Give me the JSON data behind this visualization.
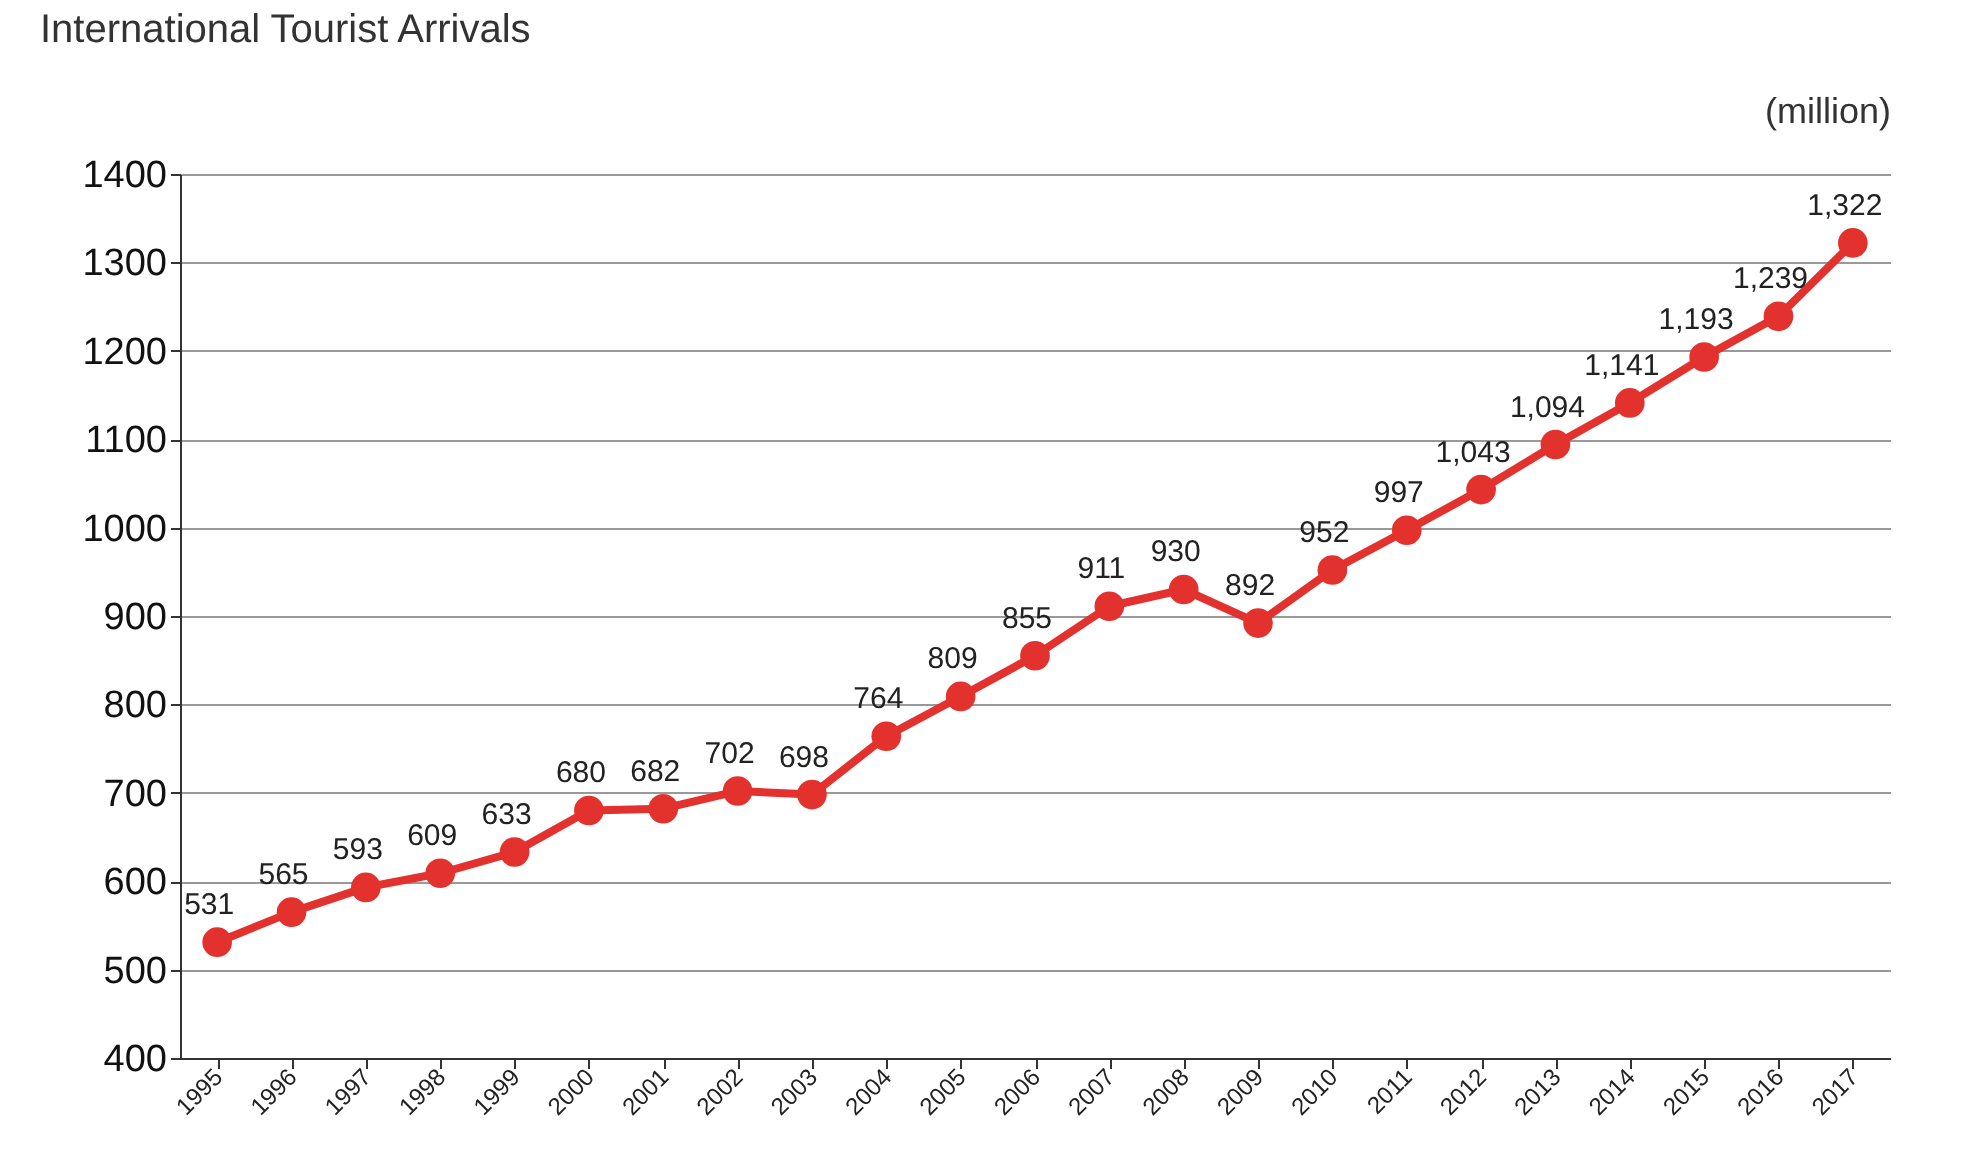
{
  "chart_data": {
    "type": "line",
    "title": "International Tourist Arrivals",
    "ylabel": "(million)",
    "categories": [
      "1995",
      "1996",
      "1997",
      "1998",
      "1999",
      "2000",
      "2001",
      "2002",
      "2003",
      "2004",
      "2005",
      "2006",
      "2007",
      "2008",
      "2009",
      "2010",
      "2011",
      "2012",
      "2013",
      "2014",
      "2015",
      "2016",
      "2017"
    ],
    "series": [
      {
        "color": "#e3312d",
        "values": [
          531,
          565,
          593,
          609,
          633,
          680,
          682,
          702,
          698,
          764,
          809,
          855,
          911,
          930,
          892,
          952,
          997,
          1043,
          1094,
          1141,
          1193,
          1239,
          1322
        ],
        "value_labels": [
          "531",
          "565",
          "593",
          "609",
          "633",
          "680",
          "682",
          "702",
          "698",
          "764",
          "809",
          "855",
          "911",
          "930",
          "892",
          "952",
          "997",
          "1,043",
          "1,094",
          "1,141",
          "1,193",
          "1,239",
          "1,322"
        ]
      }
    ],
    "ylim": [
      400,
      1400
    ],
    "yticks": [
      400,
      500,
      600,
      700,
      800,
      900,
      1000,
      1100,
      1200,
      1300,
      1400
    ],
    "grid": "y",
    "marker": "circle",
    "line_style": "solid",
    "legend": false
  }
}
